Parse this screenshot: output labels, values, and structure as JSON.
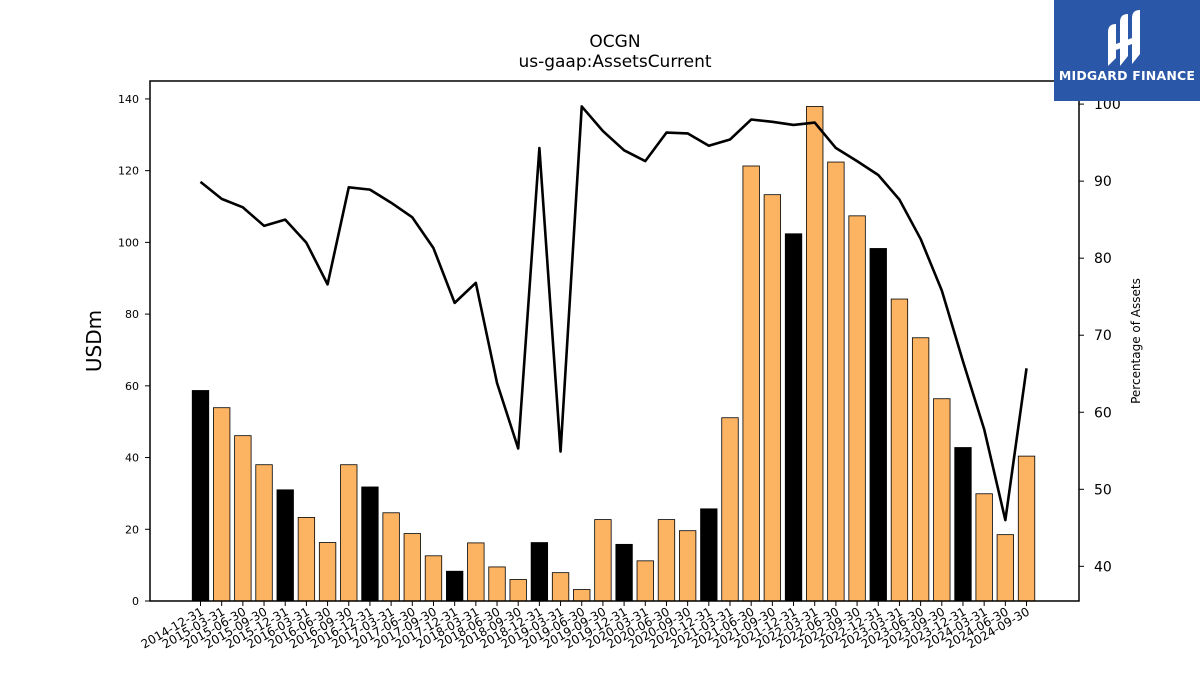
{
  "chart_data": {
    "type": "bar",
    "title": "OCGN",
    "subtitle": "us-gaap:AssetsCurrent",
    "ylabel": "USDm",
    "ylabel_right": "Percentage of Assets",
    "ylim": [
      0,
      145
    ],
    "ylim_right": [
      35.5,
      103
    ],
    "yticks": [
      0,
      20,
      40,
      60,
      80,
      100,
      120,
      140
    ],
    "yticks_right": [
      40,
      50,
      60,
      70,
      80,
      90,
      100
    ],
    "grid": false,
    "categories": [
      "2014-12-31",
      "2015-03-31",
      "2015-06-30",
      "2015-09-30",
      "2015-12-31",
      "2016-03-31",
      "2016-06-30",
      "2016-09-30",
      "2016-12-31",
      "2017-03-31",
      "2017-06-30",
      "2017-09-30",
      "2017-12-31",
      "2018-03-31",
      "2018-06-30",
      "2018-09-30",
      "2018-12-31",
      "2019-03-31",
      "2019-06-30",
      "2019-09-30",
      "2019-12-31",
      "2020-03-31",
      "2020-06-30",
      "2020-09-30",
      "2020-12-31",
      "2021-03-31",
      "2021-06-30",
      "2021-09-30",
      "2021-12-31",
      "2022-03-31",
      "2022-06-30",
      "2022-09-30",
      "2022-12-31",
      "2023-03-31",
      "2023-06-30",
      "2023-09-30",
      "2023-12-31",
      "2024-03-31",
      "2024-06-30",
      "2024-09-30"
    ],
    "series": [
      {
        "type": "bar",
        "values": [
          58.7,
          53.9,
          46.1,
          38.0,
          31.0,
          23.3,
          16.3,
          38.0,
          31.8,
          24.6,
          18.8,
          12.6,
          8.3,
          16.2,
          9.5,
          6.0,
          16.3,
          7.9,
          3.2,
          22.7,
          15.8,
          11.2,
          22.7,
          19.6,
          25.7,
          51.1,
          121.3,
          113.3,
          102.4,
          137.9,
          122.4,
          107.4,
          98.3,
          84.2,
          73.4,
          56.4,
          42.8,
          29.9,
          18.5,
          40.4
        ],
        "year_end_color": "#000000",
        "quarter_color": "#fdb462"
      },
      {
        "type": "line",
        "axis": "right",
        "color": "#000000",
        "values": [
          89.9,
          87.7,
          86.6,
          84.2,
          85.0,
          82.0,
          76.6,
          89.2,
          88.9,
          87.2,
          85.3,
          81.3,
          74.2,
          76.8,
          63.8,
          55.3,
          94.3,
          54.9,
          99.7,
          96.5,
          94.0,
          92.6,
          96.3,
          96.2,
          94.6,
          95.4,
          98.0,
          97.7,
          97.3,
          97.6,
          94.3,
          92.6,
          90.8,
          87.6,
          82.5,
          75.8,
          66.6,
          57.8,
          46.0,
          65.7
        ]
      }
    ]
  },
  "logo": {
    "text": "MIDGARD FINANCE"
  }
}
